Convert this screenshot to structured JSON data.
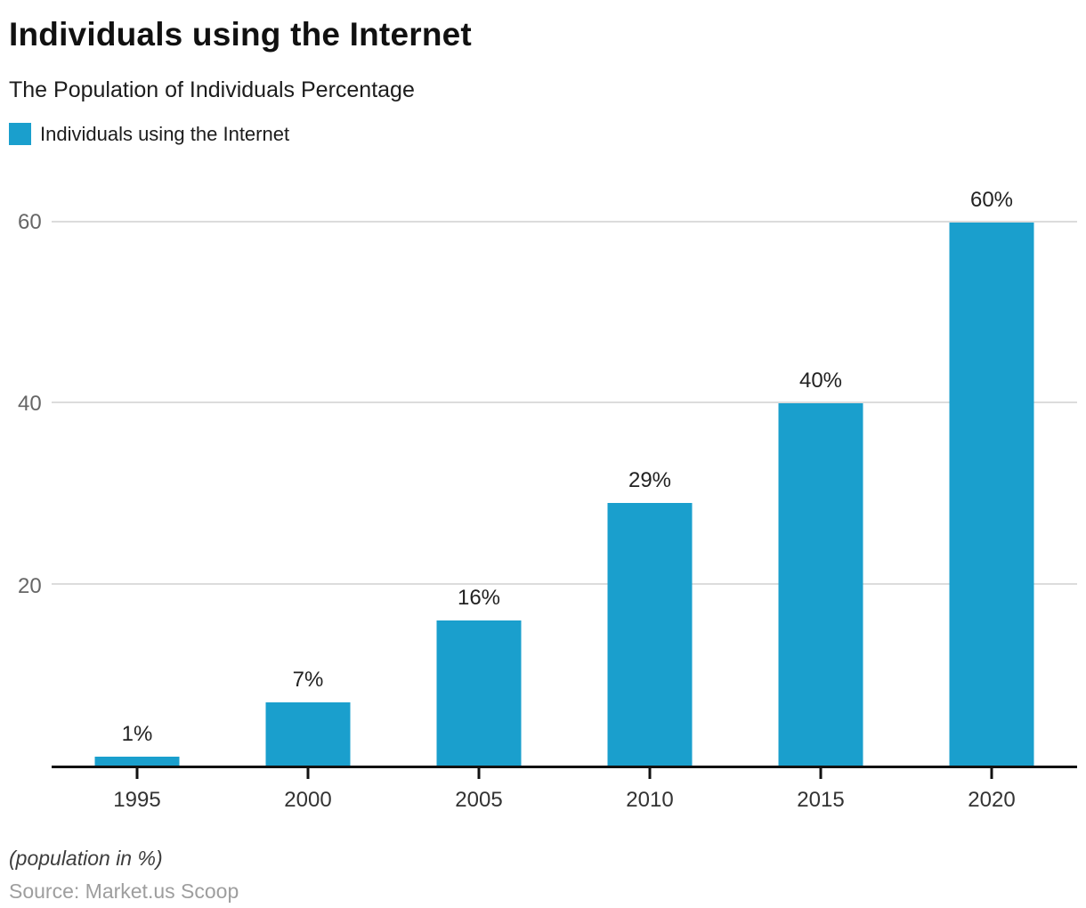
{
  "header": {
    "title": "Individuals using the Internet",
    "subtitle": "The Population of Individuals Percentage"
  },
  "legend": {
    "items": [
      {
        "label": "Individuals using the Internet",
        "color": "#1a9fcd"
      }
    ]
  },
  "chart_data": {
    "type": "bar",
    "title": "Individuals using the Internet",
    "subtitle": "The Population of Individuals Percentage",
    "categories": [
      "1995",
      "2000",
      "2005",
      "2010",
      "2015",
      "2020"
    ],
    "series": [
      {
        "name": "Individuals using the Internet",
        "values": [
          1,
          7,
          16,
          29,
          40,
          60
        ]
      }
    ],
    "value_labels": [
      "1%",
      "7%",
      "16%",
      "29%",
      "40%",
      "60%"
    ],
    "xlabel": "",
    "ylabel": "",
    "ylim": [
      0,
      60
    ],
    "yticks": [
      20,
      40,
      60
    ],
    "grid": "horizontal",
    "legend_position": "top-left",
    "bar_color": "#1a9fcd"
  },
  "footer": {
    "note": "(population in %)",
    "source": "Source: Market.us Scoop"
  },
  "colors": {
    "bar": "#1a9fcd",
    "gridline": "#dcdcdc",
    "axis_line": "#111111",
    "y_tick_label": "#666666",
    "x_tick_label": "#333333",
    "value_label": "#222222",
    "note_text": "#3d3d3d",
    "source_text": "#9e9e9e"
  }
}
